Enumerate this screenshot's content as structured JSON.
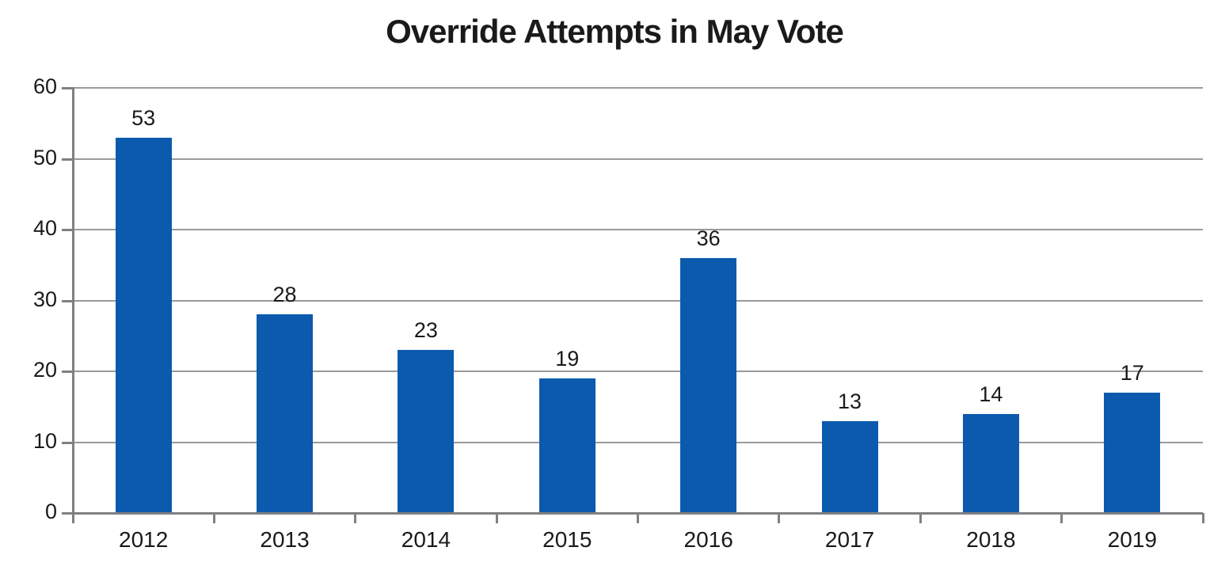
{
  "chart_data": {
    "type": "bar",
    "title": "Override Attempts in May Vote",
    "categories": [
      "2012",
      "2013",
      "2014",
      "2015",
      "2016",
      "2017",
      "2018",
      "2019"
    ],
    "values": [
      53,
      28,
      23,
      19,
      36,
      13,
      14,
      17
    ],
    "data_labels_shown": true,
    "xlabel": "",
    "ylabel": "",
    "ylim": [
      0,
      60
    ],
    "ytick_step": 10,
    "ytick_labels": [
      "0",
      "10",
      "20",
      "30",
      "40",
      "50",
      "60"
    ],
    "grid": "horizontal",
    "legend": "none",
    "colors": {
      "bar": "#0B5AAD",
      "gridline": "#9A9A9A",
      "axis": "#808080",
      "text": "#1A1A1A",
      "background": "#FFFFFF"
    }
  }
}
